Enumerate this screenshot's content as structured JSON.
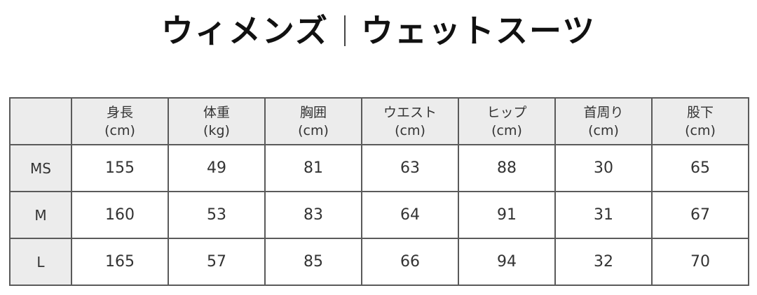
{
  "title": {
    "left": "ウィメンズ",
    "right": "ウェットスーツ"
  },
  "table": {
    "columns": [
      {
        "name": "身長",
        "unit": "(cm)"
      },
      {
        "name": "体重",
        "unit": "(kg)"
      },
      {
        "name": "胸囲",
        "unit": "(cm)"
      },
      {
        "name": "ウエスト",
        "unit": "(cm)"
      },
      {
        "name": "ヒップ",
        "unit": "(cm)"
      },
      {
        "name": "首周り",
        "unit": "(cm)"
      },
      {
        "name": "股下",
        "unit": "(cm)"
      }
    ],
    "rows": [
      {
        "size": "MS",
        "values": [
          "155",
          "49",
          "81",
          "63",
          "88",
          "30",
          "65"
        ]
      },
      {
        "size": "M",
        "values": [
          "160",
          "53",
          "83",
          "64",
          "91",
          "31",
          "67"
        ]
      },
      {
        "size": "L",
        "values": [
          "165",
          "57",
          "85",
          "66",
          "94",
          "32",
          "70"
        ]
      }
    ]
  }
}
